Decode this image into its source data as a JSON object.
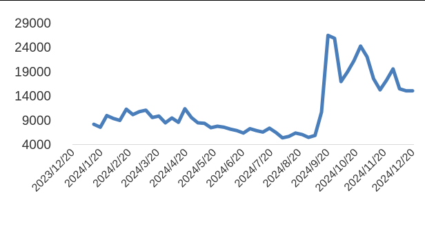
{
  "chart_data": {
    "type": "line",
    "title": "",
    "xlabel": "",
    "ylabel": "",
    "ylim": [
      4000,
      29000
    ],
    "yticks": [
      "29000",
      "24000",
      "19000",
      "14000",
      "9000",
      "4000"
    ],
    "xlim": [
      "2023-12-20",
      "2024-12-20"
    ],
    "xticks": [
      "2023/12/20",
      "2024/1/20",
      "2024/2/20",
      "2024/3/20",
      "2024/4/20",
      "2024/5/20",
      "2024/6/20",
      "2024/7/20",
      "2024/8/20",
      "2024/9/20",
      "2024/10/20",
      "2024/11/20",
      "2024/12/20"
    ],
    "grid": false,
    "legend": "none",
    "series": [
      {
        "color": "#4a7ebb",
        "x": [
          "2024-01-12",
          "2024-01-19",
          "2024-01-26",
          "2024-02-02",
          "2024-02-09",
          "2024-02-16",
          "2024-02-23",
          "2024-03-01",
          "2024-03-08",
          "2024-03-15",
          "2024-03-22",
          "2024-03-29",
          "2024-04-05",
          "2024-04-12",
          "2024-04-19",
          "2024-04-26",
          "2024-05-03",
          "2024-05-10",
          "2024-05-17",
          "2024-05-24",
          "2024-05-31",
          "2024-06-07",
          "2024-06-14",
          "2024-06-21",
          "2024-06-28",
          "2024-07-05",
          "2024-07-12",
          "2024-07-19",
          "2024-07-26",
          "2024-08-02",
          "2024-08-09",
          "2024-08-16",
          "2024-08-23",
          "2024-08-30",
          "2024-09-06",
          "2024-09-13",
          "2024-09-20",
          "2024-09-27",
          "2024-10-04",
          "2024-10-11",
          "2024-10-18",
          "2024-10-25",
          "2024-11-01",
          "2024-11-08",
          "2024-11-15",
          "2024-11-22",
          "2024-11-29",
          "2024-12-06",
          "2024-12-13",
          "2024-12-20"
        ],
        "values": [
          8100,
          7500,
          9900,
          9300,
          8900,
          11200,
          10100,
          10700,
          11000,
          9500,
          9800,
          8400,
          9400,
          8500,
          11300,
          9500,
          8400,
          8300,
          7400,
          7700,
          7500,
          7100,
          6800,
          6300,
          7200,
          6800,
          6500,
          7300,
          6400,
          5300,
          5600,
          6300,
          6000,
          5400,
          5800,
          10600,
          26400,
          25800,
          16900,
          18900,
          21200,
          24200,
          22000,
          17500,
          15200,
          17200,
          19500,
          15400,
          15000,
          15000
        ]
      }
    ]
  }
}
